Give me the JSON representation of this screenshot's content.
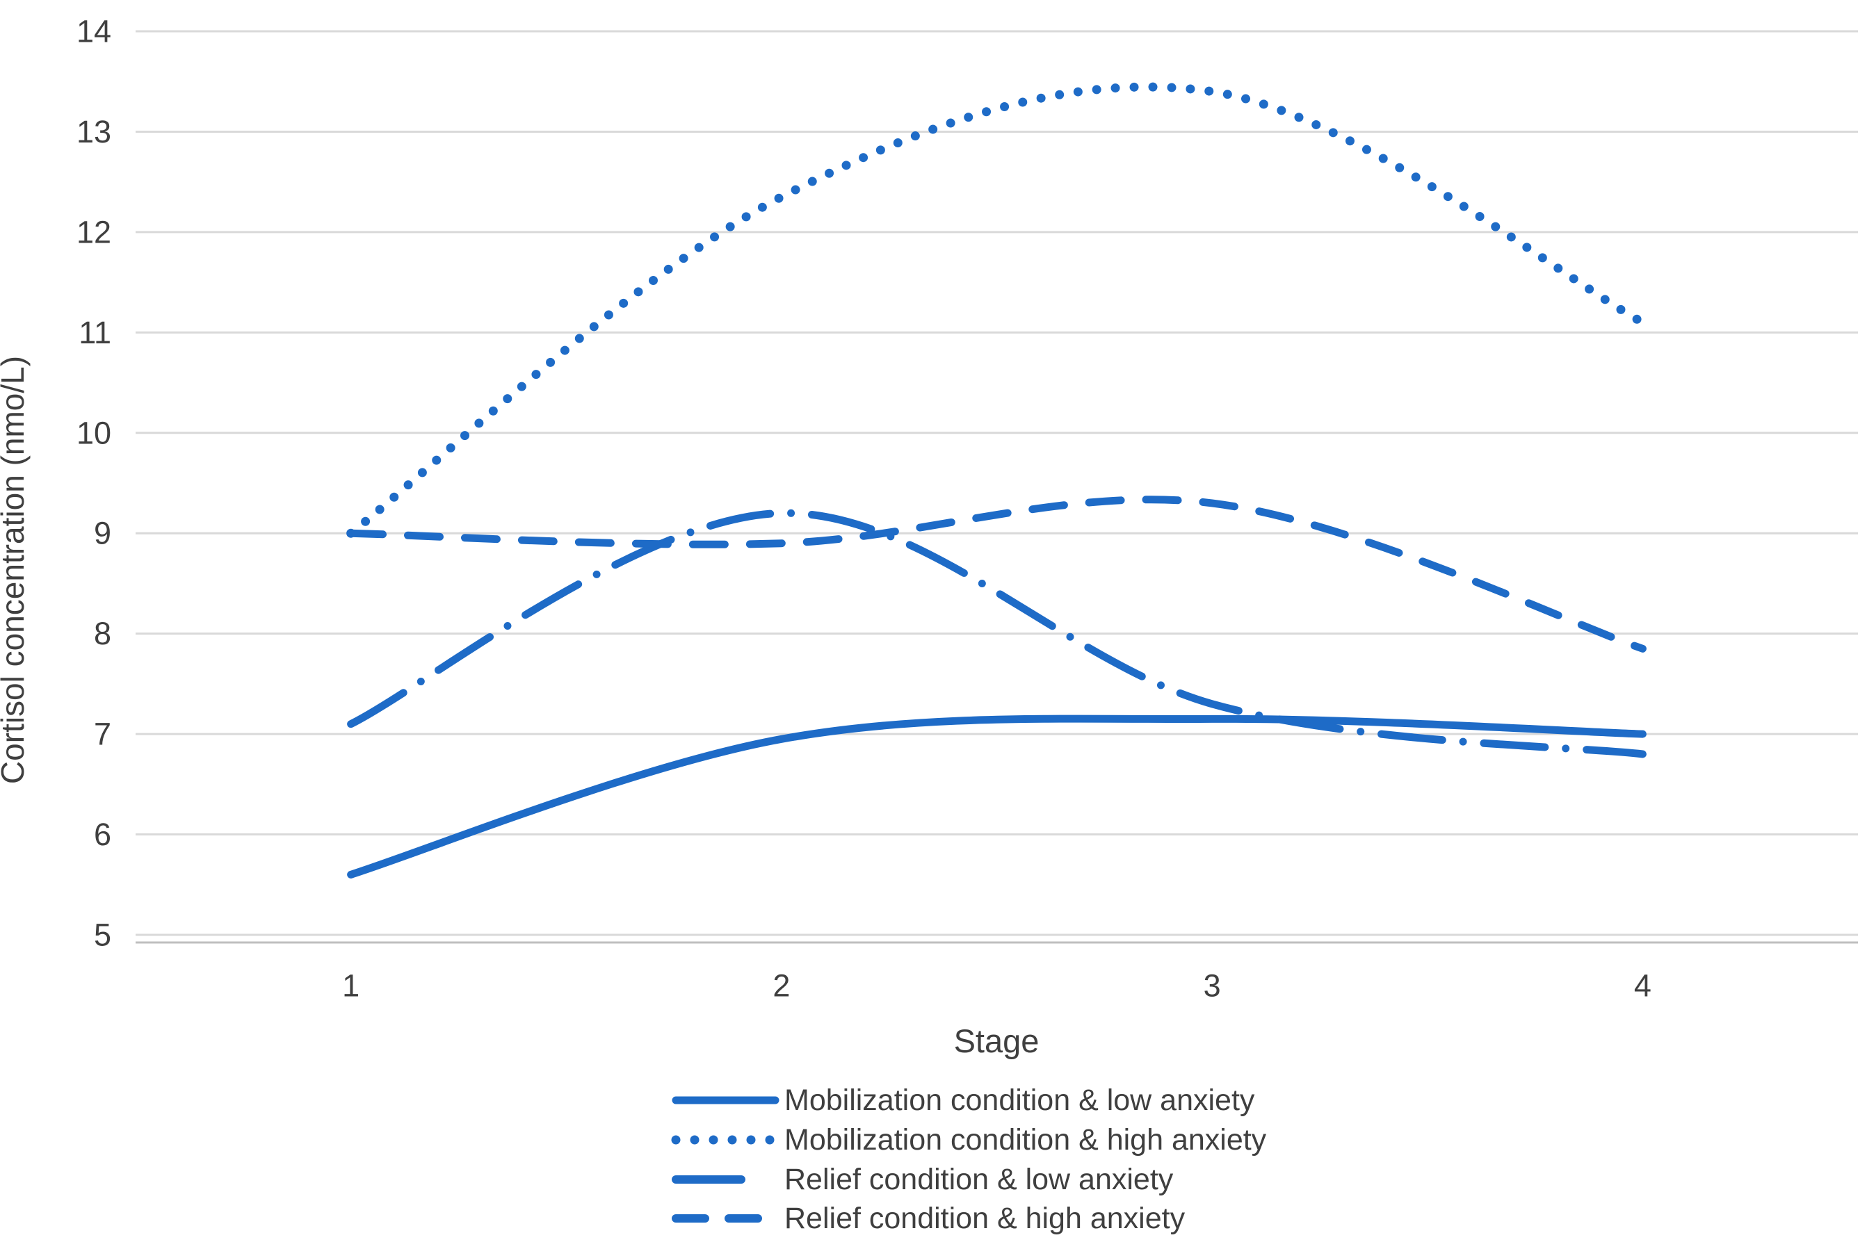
{
  "figure": {
    "kind": "line-chart-figure",
    "background": "#ffffff"
  },
  "colors": {
    "series_blue": "#1e6bc7",
    "gridline": "#d9d9d9",
    "axis_line": "#bfbfbf",
    "text_gray": "#3f3f3f"
  },
  "chart_data": {
    "type": "line",
    "title": "",
    "xlabel": "Stage",
    "ylabel": "Cortisol concentration (nmo/L)",
    "categories": [
      "1",
      "2",
      "3",
      "4"
    ],
    "yticks": [
      5,
      6,
      7,
      8,
      9,
      10,
      11,
      12,
      13,
      14
    ],
    "ylim": [
      5,
      14
    ],
    "grid": true,
    "smoothed": true,
    "legend_position": "bottom-center",
    "line_color": "#1e6bc7",
    "series": [
      {
        "name": "Mobilization condition & low anxiety",
        "style": "solid",
        "values": [
          5.6,
          6.95,
          7.15,
          7.0
        ]
      },
      {
        "name": "Mobilization condition & high anxiety",
        "style": "dotted",
        "values": [
          9.0,
          12.35,
          13.4,
          11.1
        ]
      },
      {
        "name": "Relief condition & low anxiety",
        "style": "dash-dot",
        "values": [
          7.1,
          9.2,
          7.3,
          6.8
        ]
      },
      {
        "name": "Relief condition & high anxiety",
        "style": "dashed",
        "values": [
          9.0,
          8.9,
          9.3,
          7.85
        ]
      }
    ]
  }
}
